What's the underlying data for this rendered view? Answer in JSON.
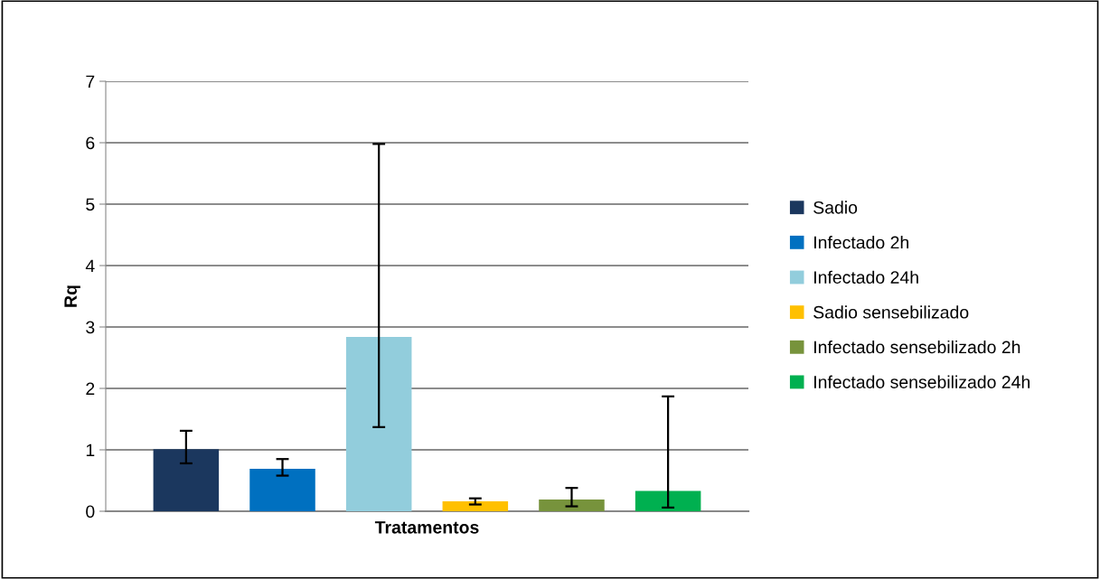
{
  "chart_data": {
    "type": "bar",
    "xlabel": "Tratamentos",
    "ylabel": "Rq",
    "categories": [
      null
    ],
    "series": [
      {
        "name": "Sadio",
        "color": "#1b375e",
        "values": [
          1.01
        ],
        "errors": [
          [
            0.78,
            1.31
          ]
        ]
      },
      {
        "name": "Infectado 2h",
        "color": "#0070c0",
        "values": [
          0.69
        ],
        "errors": [
          [
            0.58,
            0.85
          ]
        ]
      },
      {
        "name": "Infectado 24h",
        "color": "#92cddc",
        "values": [
          2.84
        ],
        "errors": [
          [
            1.37,
            5.98
          ]
        ]
      },
      {
        "name": "Sadio sensebilizado",
        "color": "#ffc000",
        "values": [
          0.16
        ],
        "errors": [
          [
            0.11,
            0.21
          ]
        ]
      },
      {
        "name": "Infectado sensebilizado 2h",
        "color": "#77933c",
        "values": [
          0.19
        ],
        "errors": [
          [
            0.08,
            0.38
          ]
        ]
      },
      {
        "name": "Infectado sensebilizado 24h",
        "color": "#00b050",
        "values": [
          0.33
        ],
        "errors": [
          [
            0.06,
            1.87
          ]
        ]
      }
    ],
    "ylim": [
      0,
      7
    ],
    "yticks": [
      0,
      1,
      2,
      3,
      4,
      5,
      6,
      7
    ],
    "grid": "y",
    "legend": "right"
  }
}
